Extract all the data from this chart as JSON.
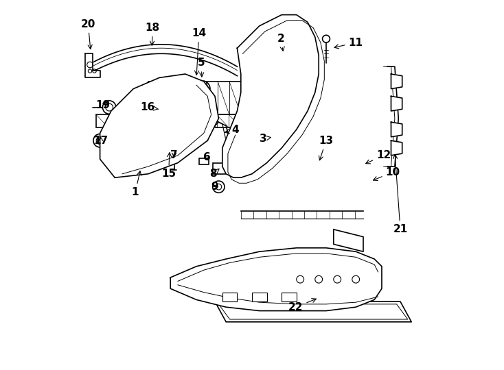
{
  "background_color": "#ffffff",
  "line_color": "#000000",
  "line_width": 1.2
}
